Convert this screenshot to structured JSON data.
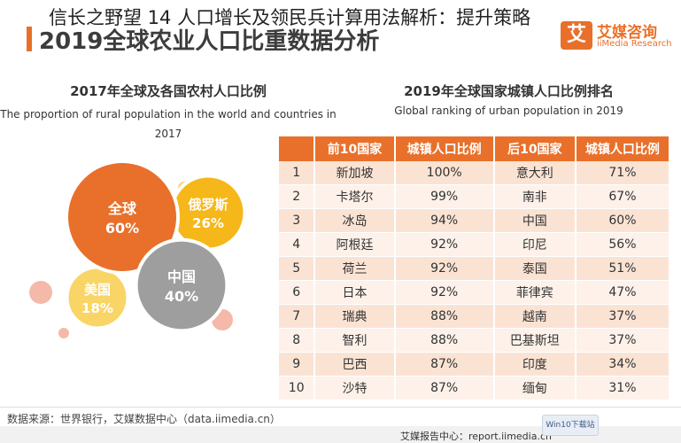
{
  "overlay_title": "信长之野望 14 人口增长及领民兵计算用法解析：提升策略",
  "slide_title": "2019全球农业人口比重数据分析",
  "logo": {
    "mark": "艾",
    "name_cn": "艾媒咨询",
    "name_en": "iiMedia Research"
  },
  "colors": {
    "accent": "#e8702a",
    "yellow": "#f6b71a",
    "gray": "#9e9e9e",
    "light_yellow": "#f9d568",
    "pink": "#f4b9a8"
  },
  "chart_data": [
    {
      "type": "bubble",
      "title": "2017年全球及各国农村人口比例",
      "subtitle": "The proportion of rural population in the world and countries in 2017",
      "categories": [
        "全球",
        "俄罗斯",
        "美国",
        "中国"
      ],
      "values": [
        60,
        26,
        18,
        40
      ],
      "value_labels": [
        "60%",
        "26%",
        "18%",
        "40%"
      ],
      "unit": "%"
    },
    {
      "type": "table",
      "title": "2019年全球国家城镇人口比例排名",
      "subtitle": "Global ranking of urban population in 2019",
      "columns": [
        "",
        "前10国家",
        "城镇人口比例",
        "后10国家",
        "城镇人口比例"
      ],
      "rows": [
        [
          "1",
          "新加坡",
          "100%",
          "意大利",
          "71%"
        ],
        [
          "2",
          "卡塔尔",
          "99%",
          "南非",
          "67%"
        ],
        [
          "3",
          "冰岛",
          "94%",
          "中国",
          "60%"
        ],
        [
          "4",
          "阿根廷",
          "92%",
          "印尼",
          "56%"
        ],
        [
          "5",
          "荷兰",
          "92%",
          "泰国",
          "51%"
        ],
        [
          "6",
          "日本",
          "92%",
          "菲律宾",
          "47%"
        ],
        [
          "7",
          "瑞典",
          "88%",
          "越南",
          "37%"
        ],
        [
          "8",
          "智利",
          "88%",
          "巴基斯坦",
          "37%"
        ],
        [
          "9",
          "巴西",
          "87%",
          "印度",
          "34%"
        ],
        [
          "10",
          "沙特",
          "87%",
          "缅甸",
          "31%"
        ]
      ]
    }
  ],
  "source": "数据来源：世界银行，艾媒数据中心（data.iimedia.cn）",
  "footer": "艾媒报告中心：report.iimedia.cn",
  "watermark": "Win10下载站"
}
